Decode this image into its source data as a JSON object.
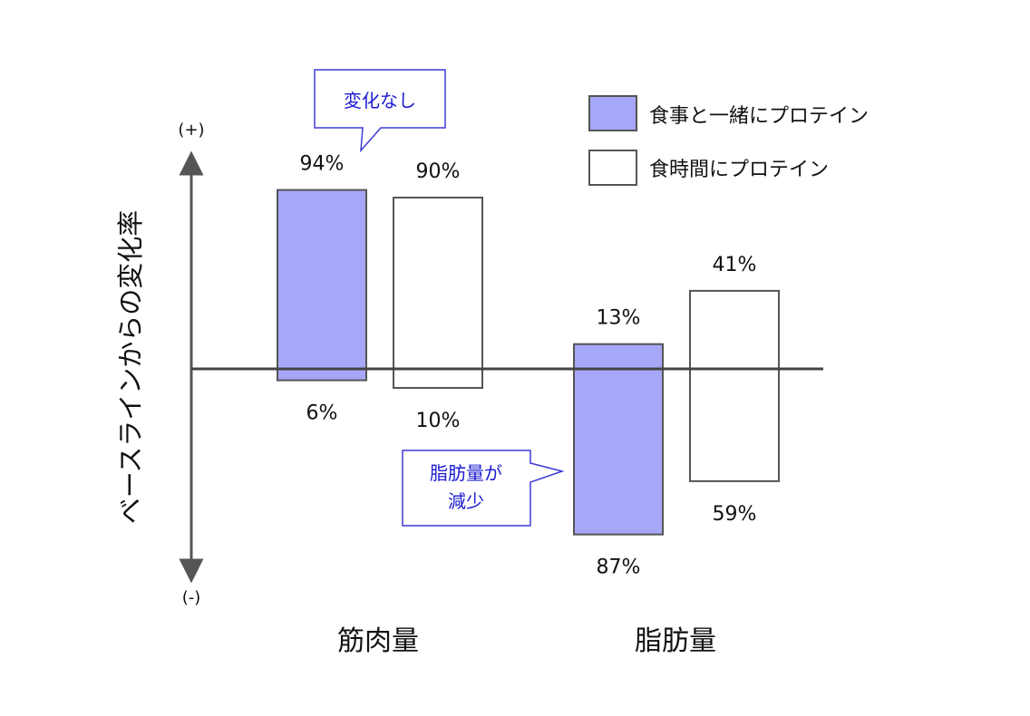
{
  "chart_data": {
    "type": "bar",
    "style": "diverging stacked (percent above / below baseline)",
    "ylabel": "ベースラインからの変化率",
    "y_top_label": "(+)",
    "y_bottom_label": "(-)",
    "categories": [
      "筋肉量",
      "脂肪量"
    ],
    "series": [
      {
        "name": "食事と一緒にプロテイン",
        "color": "#a7a7f7",
        "above": [
          94,
          13
        ],
        "below": [
          6,
          87
        ]
      },
      {
        "name": "食時間にプロテイン",
        "color": "#ffffff",
        "above": [
          90,
          41
        ],
        "below": [
          10,
          59
        ]
      }
    ],
    "above_labels": [
      [
        "94%",
        "13%"
      ],
      [
        "90%",
        "41%"
      ]
    ],
    "below_labels": [
      [
        "6%",
        "87%"
      ],
      [
        "10%",
        "59%"
      ]
    ],
    "annotations": [
      {
        "text": "変化なし",
        "target": "筋肉量"
      },
      {
        "text_lines": [
          "脂肪量が",
          "減少"
        ],
        "target": "脂肪量"
      }
    ],
    "legend_position": "top-right",
    "grid": false
  }
}
